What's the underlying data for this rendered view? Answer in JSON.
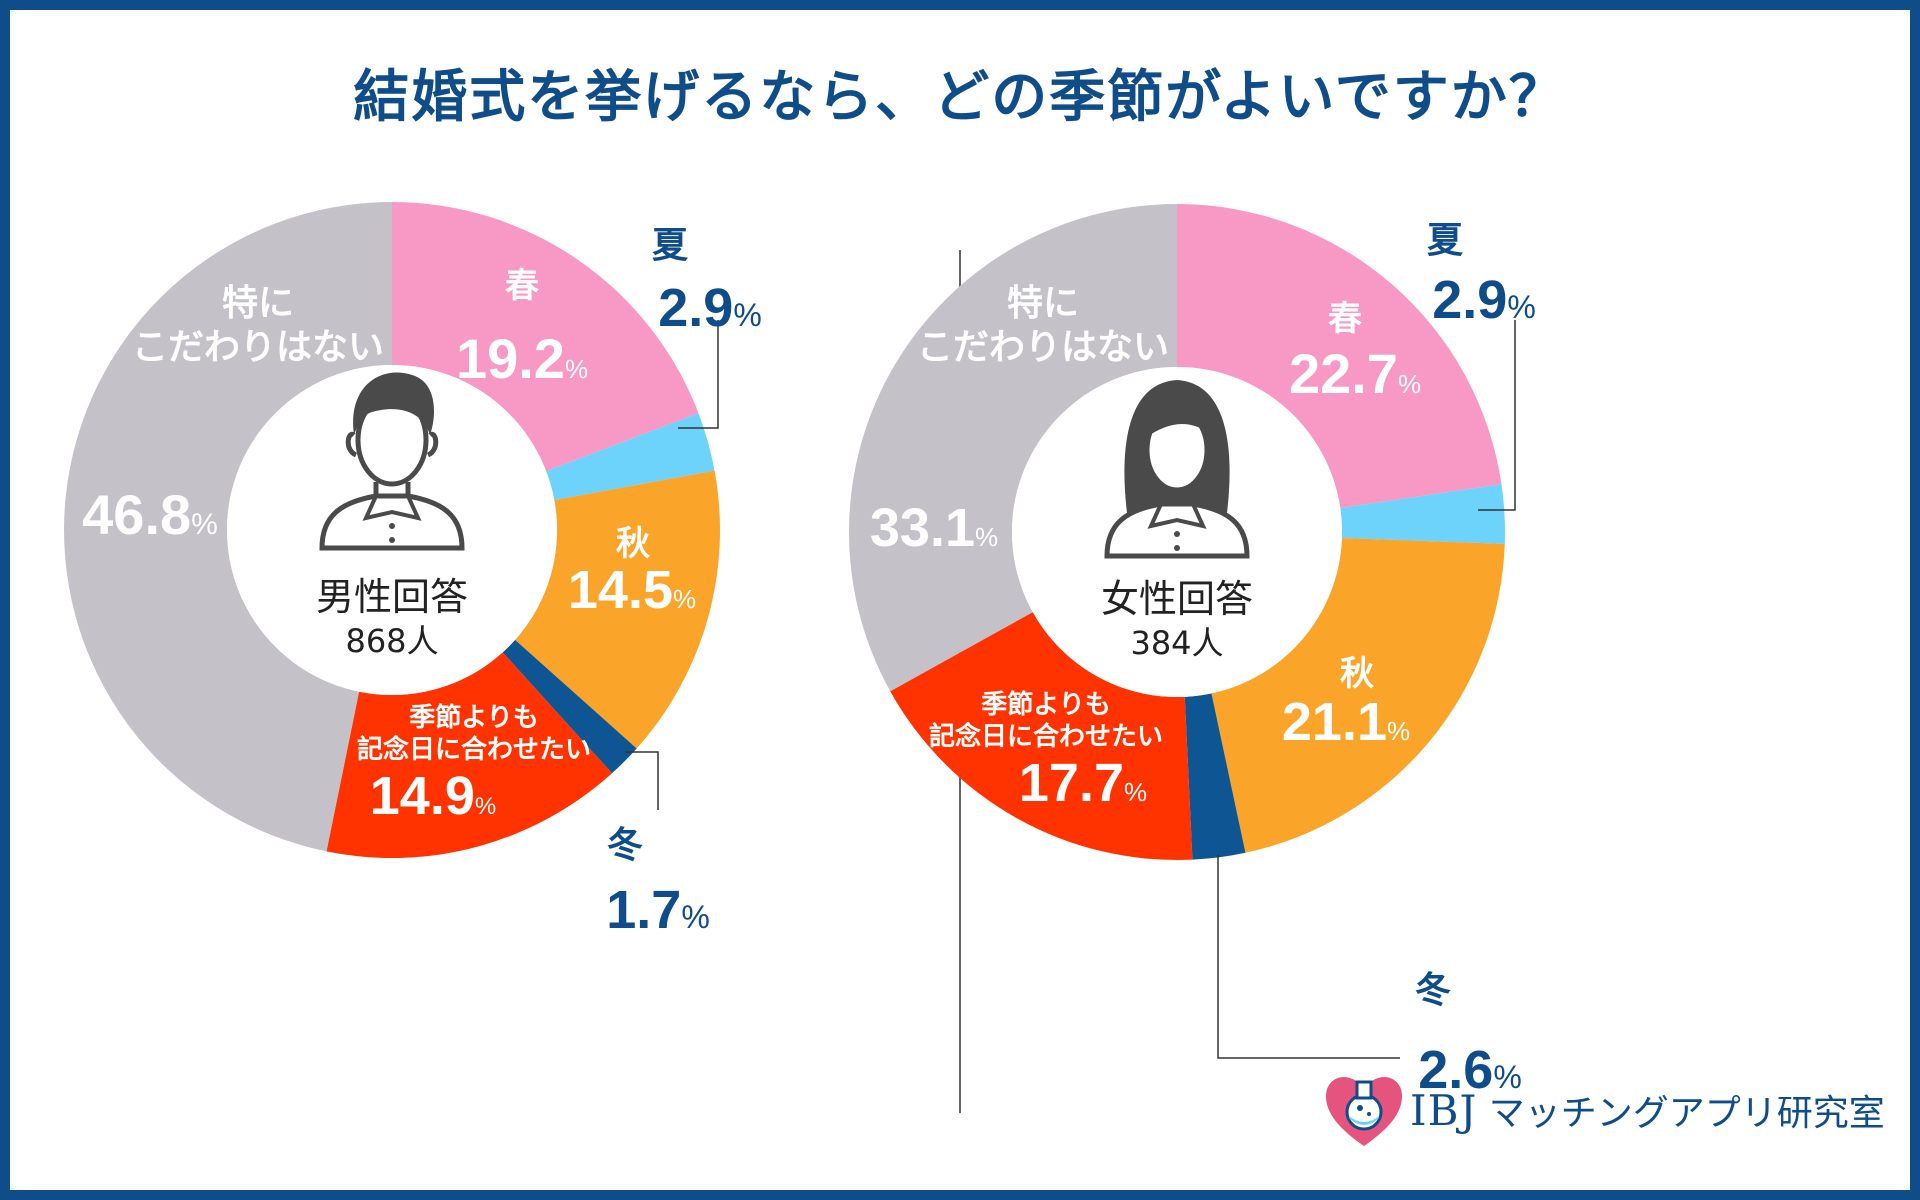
{
  "title": "結婚式を挙げるなら、どの季節がよいですか？",
  "colors": {
    "frame": "#0f4c8a",
    "title": "#0f4c8a",
    "spring": "#f799c4",
    "summer": "#6dd3fb",
    "autumn": "#fba42a",
    "winter": "#0d5593",
    "anniversary": "#ff3300",
    "no_preference": "#c4c1c9"
  },
  "brand": {
    "name": "IBJ",
    "suffix": "マッチングアプリ研究室"
  },
  "chart_data": [
    {
      "type": "pie",
      "donut": true,
      "respondent_label": "男性回答",
      "respondent_count": "868人",
      "respondent_icon": "man-icon",
      "unit": "%",
      "slices": [
        {
          "key": "spring",
          "label": "春",
          "value": 19.2,
          "color": "#f799c4"
        },
        {
          "key": "summer",
          "label": "夏",
          "value": 2.9,
          "color": "#6dd3fb"
        },
        {
          "key": "autumn",
          "label": "秋",
          "value": 14.5,
          "color": "#fba42a"
        },
        {
          "key": "winter",
          "label": "冬",
          "value": 1.7,
          "color": "#0d5593"
        },
        {
          "key": "anniversary",
          "label": "季節よりも\n記念日に合わせたい",
          "value": 14.9,
          "color": "#ff3300"
        },
        {
          "key": "no_preference",
          "label": "特に\nこだわりはない",
          "value": 46.8,
          "color": "#c4c1c9"
        }
      ]
    },
    {
      "type": "pie",
      "donut": true,
      "respondent_label": "女性回答",
      "respondent_count": "384人",
      "respondent_icon": "woman-icon",
      "unit": "%",
      "slices": [
        {
          "key": "spring",
          "label": "春",
          "value": 22.7,
          "color": "#f799c4"
        },
        {
          "key": "summer",
          "label": "夏",
          "value": 2.9,
          "color": "#6dd3fb"
        },
        {
          "key": "autumn",
          "label": "秋",
          "value": 21.1,
          "color": "#fba42a"
        },
        {
          "key": "winter",
          "label": "冬",
          "value": 2.6,
          "color": "#0d5593"
        },
        {
          "key": "anniversary",
          "label": "季節よりも\n記念日に合わせたい",
          "value": 17.7,
          "color": "#ff3300"
        },
        {
          "key": "no_preference",
          "label": "特に\nこだわりはない",
          "value": 33.1,
          "color": "#c4c1c9"
        }
      ]
    }
  ]
}
